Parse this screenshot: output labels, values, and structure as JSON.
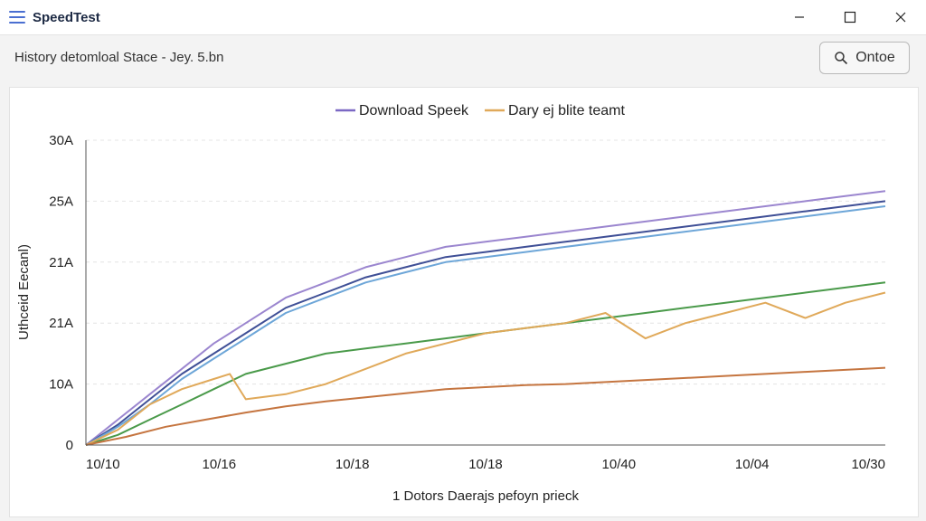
{
  "app": {
    "title": "SpeedTest"
  },
  "toolbar": {
    "history_label": "History detomloal Stace - Jey. 5.bn",
    "search_label": "Ontoe"
  },
  "chart_data": {
    "type": "line",
    "legend": [
      {
        "name": "Download Speek",
        "color": "#7b68c4"
      },
      {
        "name": "Dary ej blite teamt",
        "color": "#e0a95a"
      }
    ],
    "ylabel": "Uthceid Eecanl)",
    "xlabel": "1 Dotors Daerajs pefoyn prieck",
    "yticks": [
      "0",
      "10A",
      "21A",
      "21A",
      "25A",
      "30A"
    ],
    "xticks": [
      "10/10",
      "10/16",
      "10/18",
      "10/18",
      "10/40",
      "10/04",
      "10/30"
    ],
    "ylim": [
      0,
      30
    ],
    "xlim": [
      0,
      100
    ],
    "grid": true,
    "series": [
      {
        "color": "#9b86cf",
        "x": [
          0,
          4,
          8,
          12,
          16,
          20,
          25,
          30,
          35,
          40,
          45,
          50,
          55,
          60,
          65,
          70,
          75,
          80,
          85,
          90,
          95,
          100
        ],
        "y": [
          0,
          2.5,
          5,
          7.5,
          10,
          12,
          14.5,
          16,
          17.5,
          18.5,
          19.5,
          20,
          20.5,
          21,
          21.5,
          22,
          22.5,
          23,
          23.5,
          24,
          24.5,
          25
        ]
      },
      {
        "color": "#3f4f96",
        "x": [
          0,
          4,
          8,
          12,
          16,
          20,
          25,
          30,
          35,
          40,
          45,
          50,
          55,
          60,
          65,
          70,
          75,
          80,
          85,
          90,
          95,
          100
        ],
        "y": [
          0,
          2,
          4.5,
          7,
          9,
          11,
          13.5,
          15,
          16.5,
          17.5,
          18.5,
          19,
          19.5,
          20,
          20.5,
          21,
          21.5,
          22,
          22.5,
          23,
          23.5,
          24
        ]
      },
      {
        "color": "#6da6d8",
        "x": [
          0,
          4,
          8,
          12,
          16,
          20,
          25,
          30,
          35,
          40,
          45,
          50,
          55,
          60,
          65,
          70,
          75,
          80,
          85,
          90,
          95,
          100
        ],
        "y": [
          0,
          1.8,
          4,
          6.5,
          8.5,
          10.5,
          13,
          14.5,
          16,
          17,
          18,
          18.5,
          19,
          19.5,
          20,
          20.5,
          21,
          21.5,
          22,
          22.5,
          23,
          23.5
        ]
      },
      {
        "color": "#4a9a4a",
        "x": [
          0,
          4,
          8,
          12,
          16,
          20,
          25,
          30,
          35,
          40,
          45,
          50,
          55,
          60,
          65,
          70,
          75,
          80,
          85,
          90,
          95,
          100
        ],
        "y": [
          0,
          1,
          2.5,
          4,
          5.5,
          7,
          8,
          9,
          9.5,
          10,
          10.5,
          11,
          11.5,
          12,
          12.5,
          13,
          13.5,
          14,
          14.5,
          15,
          15.5,
          16
        ]
      },
      {
        "color": "#e0a95a",
        "x": [
          0,
          4,
          8,
          12,
          16,
          18,
          20,
          25,
          30,
          35,
          40,
          45,
          50,
          55,
          60,
          65,
          70,
          75,
          80,
          85,
          90,
          95,
          100
        ],
        "y": [
          0,
          1.5,
          4,
          5.5,
          6.5,
          7,
          4.5,
          5,
          6,
          7.5,
          9,
          10,
          11,
          11.5,
          12,
          13,
          10.5,
          12,
          13,
          14,
          12.5,
          14,
          15
        ]
      },
      {
        "color": "#c57540",
        "x": [
          0,
          5,
          10,
          15,
          20,
          25,
          30,
          35,
          40,
          45,
          50,
          55,
          60,
          65,
          70,
          75,
          80,
          85,
          90,
          95,
          100
        ],
        "y": [
          0,
          0.8,
          1.8,
          2.5,
          3.2,
          3.8,
          4.3,
          4.7,
          5.1,
          5.5,
          5.7,
          5.9,
          6,
          6.2,
          6.4,
          6.6,
          6.8,
          7,
          7.2,
          7.4,
          7.6
        ]
      }
    ]
  }
}
